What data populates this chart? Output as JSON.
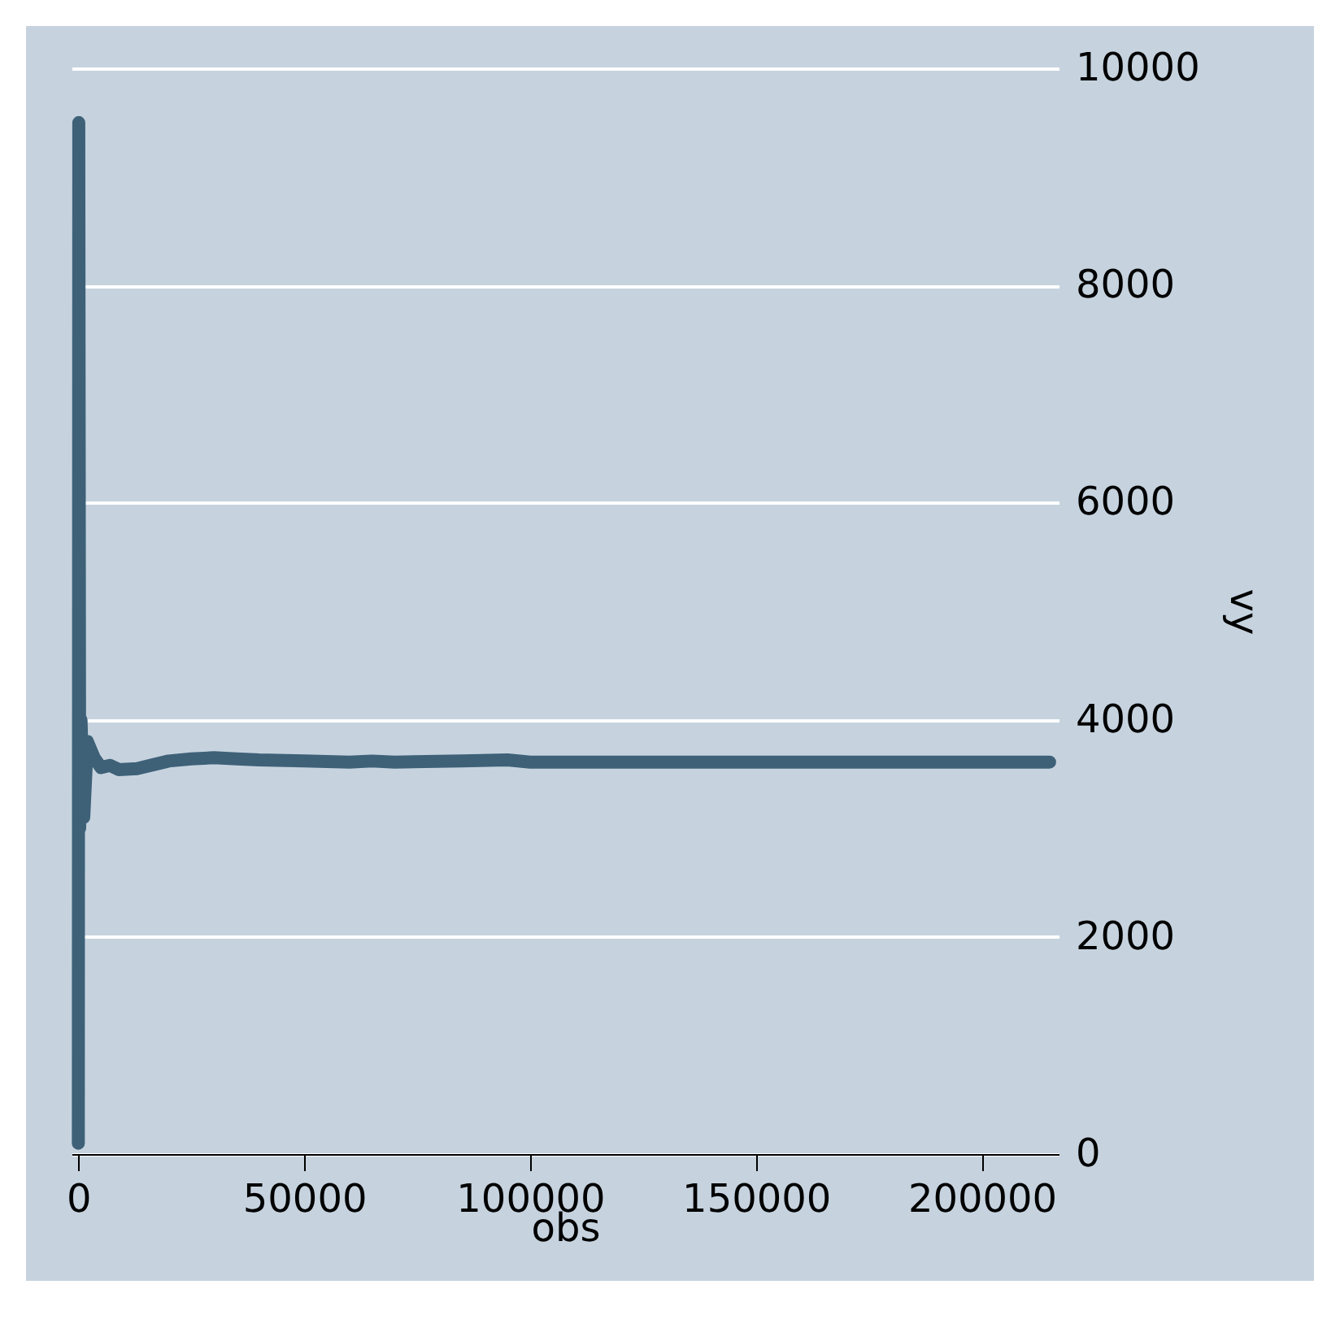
{
  "chart_data": {
    "type": "line",
    "xlabel": "obs",
    "ylabel": "vy",
    "x": [
      0,
      100,
      300,
      600,
      1200,
      2000,
      3500,
      5000,
      7000,
      9000,
      13000,
      17000,
      20000,
      25000,
      30000,
      35000,
      40000,
      50000,
      60000,
      65000,
      70000,
      85000,
      95000,
      100000,
      120000,
      150000,
      180000,
      215000
    ],
    "series": [
      {
        "color": "#3e6178",
        "values": [
          100,
          9500,
          3000,
          4000,
          3100,
          3800,
          3650,
          3560,
          3580,
          3540,
          3550,
          3590,
          3620,
          3640,
          3650,
          3640,
          3630,
          3620,
          3610,
          3620,
          3610,
          3620,
          3630,
          3610,
          3610,
          3610,
          3610,
          3610
        ]
      }
    ],
    "xlim": [
      -1500,
      217000
    ],
    "ylim": [
      0,
      10000
    ],
    "xticks": [
      0,
      50000,
      100000,
      150000,
      200000
    ],
    "yticks": [
      0,
      2000,
      4000,
      6000,
      8000,
      10000
    ],
    "grid": "y"
  }
}
